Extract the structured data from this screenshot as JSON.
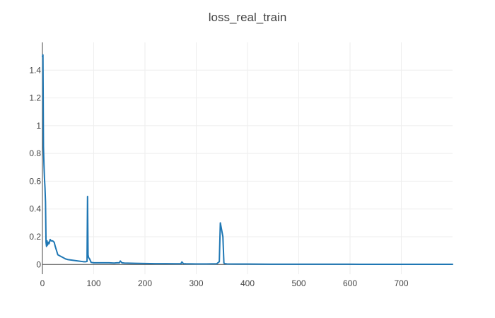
{
  "chart_data": {
    "type": "line",
    "title": "loss_real_train",
    "xlabel": "",
    "ylabel": "",
    "xlim": [
      0,
      800
    ],
    "ylim": [
      -0.07,
      1.6
    ],
    "x_ticks": [
      0,
      100,
      200,
      300,
      400,
      500,
      600,
      700
    ],
    "y_ticks": [
      0,
      0.2,
      0.4,
      0.6,
      0.8,
      1,
      1.2,
      1.4
    ],
    "x_tick_labels": [
      "0",
      "100",
      "200",
      "300",
      "400",
      "500",
      "600",
      "700"
    ],
    "y_tick_labels": [
      "0",
      "0.2",
      "0.4",
      "0.6",
      "0.8",
      "1",
      "1.2",
      "1.4"
    ],
    "grid": true,
    "legend": "none",
    "line_color": "#1f77b4",
    "series": [
      {
        "x": [
          0,
          1,
          2,
          3,
          4,
          5,
          6,
          7,
          8,
          9,
          10,
          11,
          12,
          13,
          15,
          17,
          20,
          23,
          25,
          30,
          35,
          40,
          45,
          50,
          60,
          70,
          80,
          85,
          87,
          88,
          89,
          90,
          92,
          95,
          100,
          110,
          120,
          130,
          140,
          145,
          150,
          152,
          155,
          160,
          180,
          200,
          220,
          240,
          260,
          270,
          272,
          275,
          280,
          300,
          320,
          340,
          345,
          347,
          352,
          354,
          356,
          360,
          380,
          400,
          450,
          500,
          550,
          600,
          630,
          700,
          800
        ],
        "y": [
          1.5,
          1.51,
          0.85,
          0.72,
          0.62,
          0.55,
          0.45,
          0.16,
          0.13,
          0.17,
          0.14,
          0.15,
          0.16,
          0.15,
          0.18,
          0.17,
          0.17,
          0.16,
          0.13,
          0.07,
          0.06,
          0.05,
          0.04,
          0.035,
          0.03,
          0.025,
          0.02,
          0.02,
          0.022,
          0.49,
          0.07,
          0.05,
          0.04,
          0.015,
          0.012,
          0.012,
          0.012,
          0.012,
          0.01,
          0.012,
          0.012,
          0.025,
          0.012,
          0.01,
          0.008,
          0.007,
          0.006,
          0.006,
          0.005,
          0.005,
          0.018,
          0.006,
          0.005,
          0.004,
          0.004,
          0.005,
          0.02,
          0.3,
          0.2,
          0.01,
          0.006,
          0.004,
          0.003,
          0.003,
          0.002,
          0.002,
          0.002,
          0.002,
          0.001,
          0.001,
          0.001
        ]
      }
    ]
  }
}
